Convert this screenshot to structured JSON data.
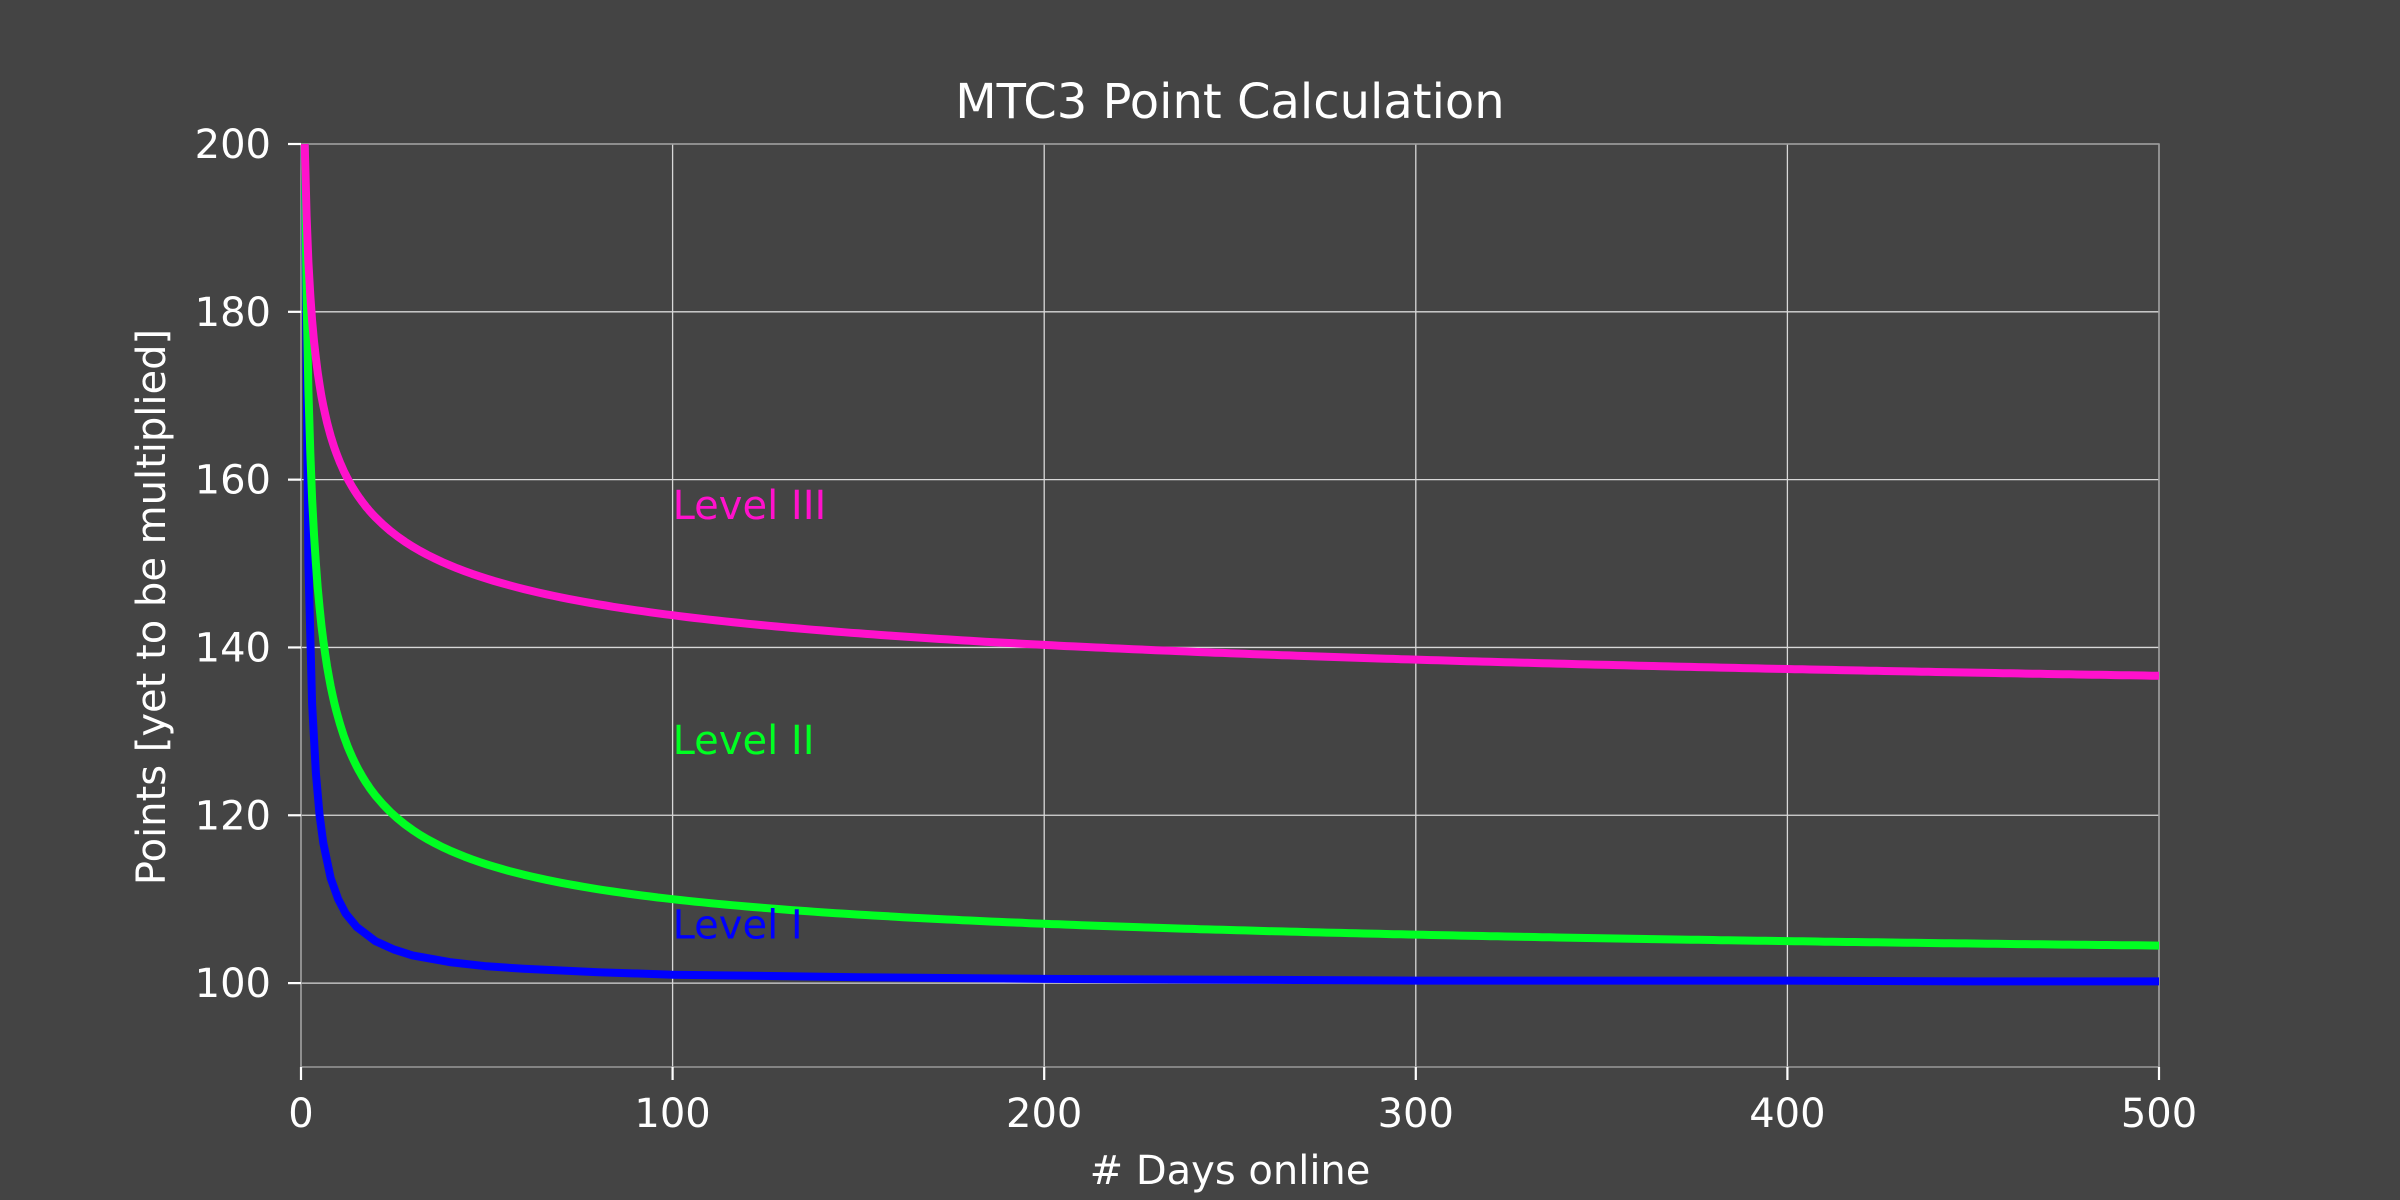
{
  "chart_data": {
    "type": "line",
    "title": "MTC3 Point Calculation",
    "xlabel": "# Days online",
    "ylabel": "Points [yet to be multiplied]",
    "xlim": [
      0,
      500
    ],
    "ylim": [
      90,
      200
    ],
    "xticks": [
      0,
      100,
      200,
      300,
      400,
      500
    ],
    "yticks": [
      100,
      120,
      140,
      160,
      180,
      200
    ],
    "grid": true,
    "legend": "inline labels",
    "background": "#444444",
    "series": [
      {
        "name": "Level I",
        "color": "#0000ff",
        "label_at": [
          100,
          107
        ],
        "x": [
          1,
          2,
          3,
          4,
          5,
          6,
          8,
          10,
          12,
          15,
          20,
          25,
          30,
          40,
          50,
          60,
          80,
          100,
          150,
          200,
          250,
          300,
          350,
          400,
          450,
          500
        ],
        "y": [
          200,
          150,
          133.3,
          125,
          120,
          116.7,
          112.5,
          110,
          108.3,
          106.7,
          105,
          104,
          103.3,
          102.5,
          102,
          101.7,
          101.3,
          101,
          100.7,
          100.5,
          100.4,
          100.3,
          100.3,
          100.3,
          100.2,
          100.2
        ]
      },
      {
        "name": "Level II",
        "color": "#00ff22",
        "label_at": [
          100,
          129
        ]
      },
      {
        "name": "Level III",
        "color": "#ff11cc",
        "label_at": [
          100,
          157
        ]
      }
    ]
  }
}
